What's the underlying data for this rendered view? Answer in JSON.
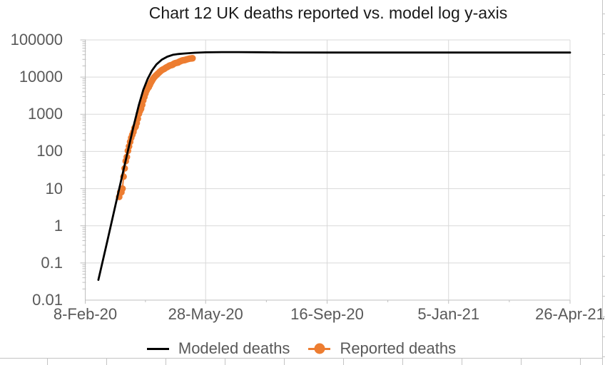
{
  "title_bar": {
    "chart_title": "Chart 12 UK deaths reported vs. model log y-axis"
  },
  "colors": {
    "model_line": "#000000",
    "reported_marker": "#ED7D31",
    "gridline": "#D9D9D9",
    "axis_line": "#BFBFBF",
    "tick_mark": "#BFBFBF",
    "axis_text": "#595959",
    "title_text": "#1A1A1A",
    "sheet_border": "#C4C4C4"
  },
  "chart_data": {
    "type": "line",
    "title": "Chart 12 UK deaths reported vs. model log y-axis",
    "x_axis": {
      "type": "date",
      "start_date": "8-Feb-20",
      "end_date": "26-Apr-21",
      "span_days": 443,
      "ticks": [
        {
          "label": "8-Feb-20",
          "day": 0
        },
        {
          "label": "28-May-20",
          "day": 110
        },
        {
          "label": "16-Sep-20",
          "day": 221
        },
        {
          "label": "5-Jan-21",
          "day": 332
        },
        {
          "label": "26-Apr-21",
          "day": 443
        }
      ],
      "minor_tick_days": [
        55,
        165.5,
        276.5,
        387.5
      ]
    },
    "y_axis": {
      "scale": "log",
      "min": 0.01,
      "max": 100000,
      "ticks": [
        100000,
        10000,
        1000,
        100,
        10,
        1,
        0.1,
        0.01
      ],
      "tick_labels": [
        "100000",
        "10000",
        "1000",
        "100",
        "10",
        "1",
        "0.1",
        "0.01"
      ],
      "grid": true
    },
    "legend": {
      "position": "bottom",
      "entries": [
        "Modeled deaths",
        "Reported deaths"
      ]
    },
    "series": [
      {
        "name": "Modeled deaths",
        "type": "line",
        "color": "#000000",
        "points_day_value": [
          [
            12,
            0.035
          ],
          [
            20,
            0.37
          ],
          [
            28,
            4.0
          ],
          [
            36,
            43
          ],
          [
            44,
            460
          ],
          [
            49,
            1800
          ],
          [
            53,
            4500
          ],
          [
            57,
            8900
          ],
          [
            61,
            15100
          ],
          [
            65,
            21900
          ],
          [
            70,
            29500
          ],
          [
            75,
            35500
          ],
          [
            80,
            39800
          ],
          [
            85,
            41800
          ],
          [
            90,
            43100
          ],
          [
            100,
            45200
          ],
          [
            110,
            46300
          ],
          [
            125,
            47000
          ],
          [
            140,
            47000
          ],
          [
            160,
            46500
          ],
          [
            180,
            46000
          ],
          [
            220,
            45800
          ],
          [
            300,
            45800
          ],
          [
            443,
            45800
          ]
        ]
      },
      {
        "name": "Reported deaths",
        "type": "scatter",
        "color": "#ED7D31",
        "marker": "circle",
        "start_day": 31,
        "daily_cumulative_values": [
          6,
          8,
          8,
          10,
          21,
          35,
          55,
          71,
          104,
          137,
          181,
          233,
          281,
          335,
          422,
          465,
          578,
          759,
          1019,
          1228,
          1408,
          1789,
          2352,
          2921,
          3605,
          4313,
          4934,
          5373,
          6159,
          7097,
          7978,
          8958,
          9875,
          10612,
          11329,
          12107,
          12868,
          13729,
          14576,
          15464,
          16060,
          16509,
          17337,
          18100,
          18738,
          19506,
          20319,
          20732,
          21092,
          21678,
          22792,
          23635,
          24055,
          24393,
          24876,
          26097,
          26771,
          27510,
          28131,
          28446,
          28734,
          29427,
          30076,
          30615,
          31241,
          31587,
          31855,
          32065
        ]
      }
    ]
  }
}
